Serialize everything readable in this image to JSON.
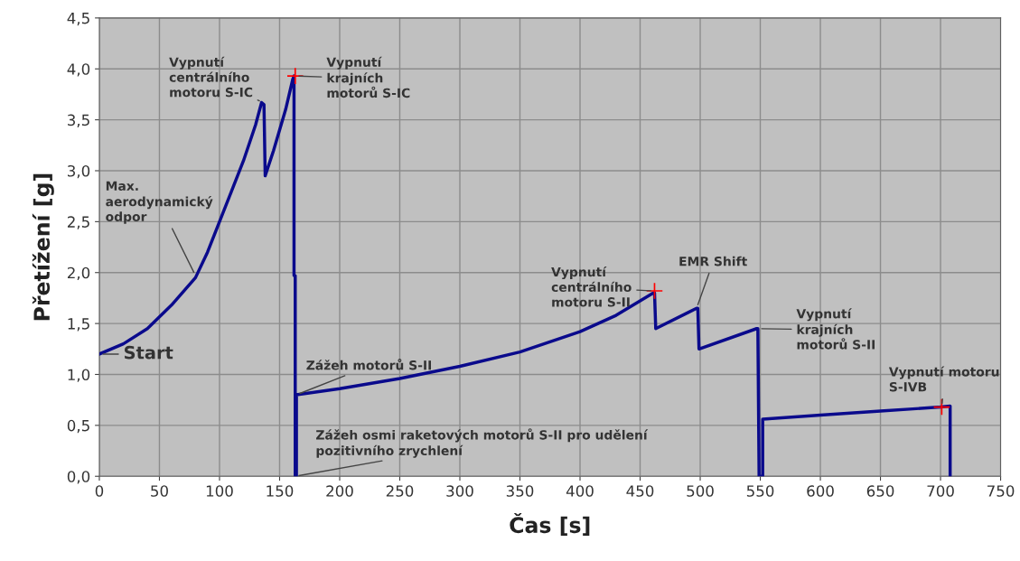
{
  "chart_data": {
    "type": "line",
    "xlabel": "Čas [s]",
    "ylabel": "Přetížení [g]",
    "xlim": [
      0,
      750
    ],
    "ylim": [
      0,
      4.5
    ],
    "xticks": [
      0,
      50,
      100,
      150,
      200,
      250,
      300,
      350,
      400,
      450,
      500,
      550,
      600,
      650,
      700,
      750
    ],
    "yticks": [
      {
        "value": 0,
        "label": "0,0"
      },
      {
        "value": 0.5,
        "label": "0,5"
      },
      {
        "value": 1,
        "label": "1,0"
      },
      {
        "value": 1.5,
        "label": "1,5"
      },
      {
        "value": 2,
        "label": "2,0"
      },
      {
        "value": 2.5,
        "label": "2,5"
      },
      {
        "value": 3,
        "label": "3,0"
      },
      {
        "value": 3.5,
        "label": "3,5"
      },
      {
        "value": 4,
        "label": "4,0"
      },
      {
        "value": 4.5,
        "label": "4,5"
      }
    ],
    "grid": true,
    "legend": false,
    "series": [
      {
        "color": "#0a0a8c",
        "marker": "none",
        "x": [
          0,
          20,
          40,
          60,
          80,
          90,
          100,
          110,
          120,
          130,
          135,
          137,
          138,
          145,
          155,
          161,
          162,
          162,
          163,
          163,
          164,
          164,
          200,
          250,
          300,
          350,
          400,
          430,
          461,
          462,
          463,
          497,
          498,
          499,
          547,
          548,
          549,
          552,
          552,
          600,
          650,
          700,
          708,
          708
        ],
        "values": [
          1.2,
          1.3,
          1.45,
          1.68,
          1.95,
          2.2,
          2.5,
          2.8,
          3.1,
          3.45,
          3.67,
          3.65,
          2.95,
          3.2,
          3.6,
          3.9,
          3.93,
          1.97,
          1.97,
          0,
          0,
          0.8,
          0.86,
          0.96,
          1.08,
          1.22,
          1.42,
          1.58,
          1.8,
          1.8,
          1.45,
          1.65,
          1.65,
          1.25,
          1.45,
          1.45,
          0,
          0,
          0.56,
          0.6,
          0.64,
          0.68,
          0.69,
          0
        ]
      },
      {
        "type": "scatter",
        "color": "#ff0000",
        "marker": "cross",
        "x": [
          163,
          462,
          701
        ],
        "values": [
          3.93,
          1.82,
          0.68
        ]
      }
    ],
    "annotations": [
      {
        "text": "Start",
        "x": 0,
        "y": 1.2
      },
      {
        "text": "Max.\naerodynamický\nodpor",
        "x": 80,
        "y": 1.97
      },
      {
        "text": "Vypnutí\ncentrálního\nmotoru S-IC",
        "x": 136,
        "y": 3.67
      },
      {
        "text": "Vypnutí\nkrajních\nmotorů S-IC",
        "x": 163,
        "y": 3.93
      },
      {
        "text": "Zážeh motorů S-II",
        "x": 164,
        "y": 0.8
      },
      {
        "text": "Zážeh osmi raketových motorů S-II pro udělení\npozitivního zrychlení",
        "x": 163,
        "y": 0
      },
      {
        "text": "Vypnutí\ncentrálního\nmotoru S-II",
        "x": 462,
        "y": 1.82
      },
      {
        "text": "EMR Shift",
        "x": 497,
        "y": 1.65
      },
      {
        "text": "Vypnutí\nkrajních\nmotorů S-II",
        "x": 548,
        "y": 1.45
      },
      {
        "text": "Vypnutí motoru\nS-IVB",
        "x": 701,
        "y": 0.68
      }
    ]
  }
}
